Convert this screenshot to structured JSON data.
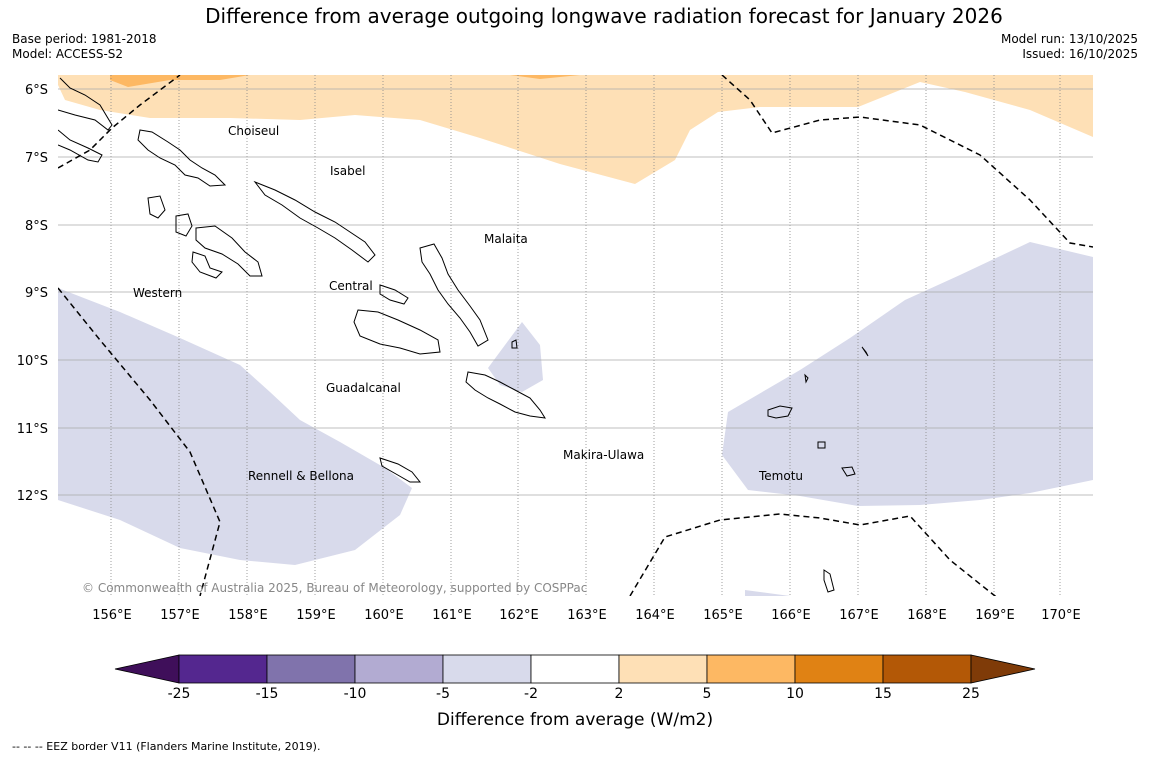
{
  "title": "Difference from average outgoing longwave radiation forecast for January 2026",
  "base_period": "Base period: 1981-2018",
  "model": "Model: ACCESS-S2",
  "model_run": "Model run: 13/10/2025",
  "issued": "Issued: 16/10/2025",
  "copyright": "© Commonwealth of Australia 2025, Bureau of Meteorology, supported by COSPPac",
  "footnote": "--  --  -- EEZ border V11 (Flanders Marine Institute, 2019).",
  "map": {
    "lat_labels": [
      "6°S",
      "7°S",
      "8°S",
      "9°S",
      "10°S",
      "11°S",
      "12°S"
    ],
    "lon_labels": [
      "156°E",
      "157°E",
      "158°E",
      "159°E",
      "160°E",
      "161°E",
      "162°E",
      "163°E",
      "164°E",
      "165°E",
      "166°E",
      "167°E",
      "168°E",
      "169°E",
      "170°E"
    ],
    "regions": [
      "Choiseul",
      "Isabel",
      "Malaita",
      "Western",
      "Central",
      "Guadalcanal",
      "Makira-Ulawa",
      "Rennell & Bellona",
      "Temotu"
    ]
  },
  "colorbar": {
    "title": "Difference from average (W/m2)",
    "ticks": [
      "-25",
      "-15",
      "-10",
      "-5",
      "-2",
      "2",
      "5",
      "10",
      "15",
      "25"
    ],
    "colors": [
      "#3f0f5a",
      "#54278f",
      "#8073ac",
      "#b2abd2",
      "#d8daeb",
      "#ffffff",
      "#fee0b6",
      "#fdb863",
      "#e08214",
      "#b35806",
      "#7f3b08"
    ]
  }
}
